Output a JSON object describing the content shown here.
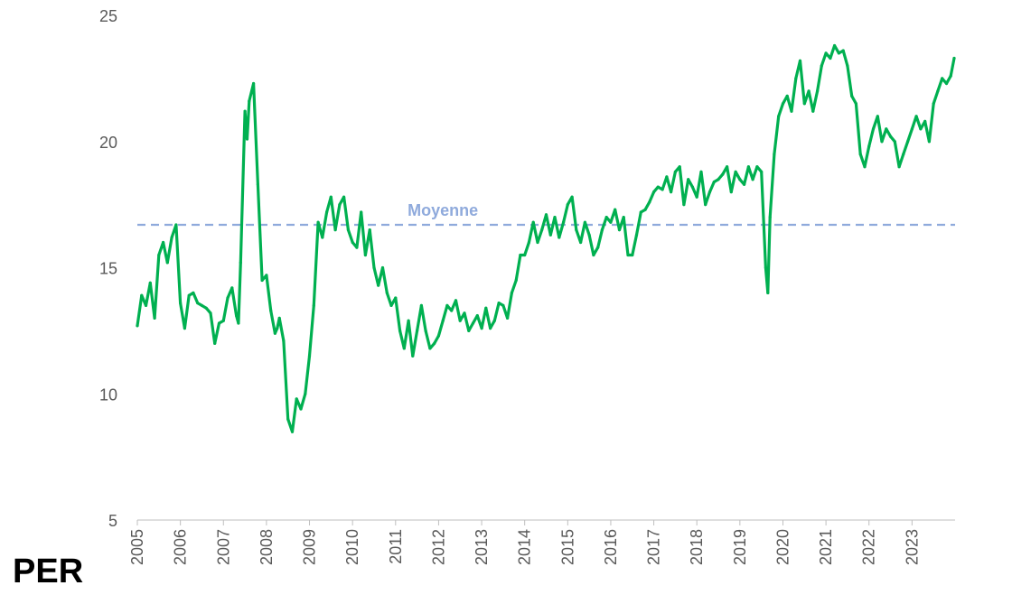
{
  "page_label": "PER",
  "chart_data": {
    "type": "line",
    "title": "",
    "xlabel": "",
    "ylabel": "",
    "ylim": [
      5,
      25
    ],
    "xlim": [
      "2005-01-01",
      "2023-12-31"
    ],
    "y_ticks": [
      5,
      10,
      15,
      20,
      25
    ],
    "x_ticks": [
      "2005",
      "2006",
      "2007",
      "2008",
      "2009",
      "2010",
      "2011",
      "2012",
      "2013",
      "2014",
      "2015",
      "2016",
      "2017",
      "2018",
      "2019",
      "2020",
      "2021",
      "2022",
      "2023"
    ],
    "grid": false,
    "line_color": "#00b050",
    "mean_line": {
      "label": "Moyenne",
      "value": 16.7,
      "color": "#8faadc",
      "style": "dashed"
    },
    "series": [
      {
        "x": [
          2005.0,
          2005.1,
          2005.2,
          2005.3,
          2005.4,
          2005.5,
          2005.6,
          2005.7,
          2005.8,
          2005.9,
          2006.0,
          2006.1,
          2006.2,
          2006.3,
          2006.4,
          2006.5,
          2006.6,
          2006.7,
          2006.8,
          2006.9,
          2007.0,
          2007.1,
          2007.2,
          2007.3,
          2007.35,
          2007.4,
          2007.5,
          2007.55,
          2007.6,
          2007.7,
          2007.8,
          2007.9,
          2008.0,
          2008.1,
          2008.2,
          2008.25,
          2008.3,
          2008.4,
          2008.5,
          2008.6,
          2008.7,
          2008.8,
          2008.9,
          2009.0,
          2009.1,
          2009.2,
          2009.3,
          2009.4,
          2009.5,
          2009.6,
          2009.7,
          2009.8,
          2009.9,
          2010.0,
          2010.1,
          2010.2,
          2010.3,
          2010.4,
          2010.5,
          2010.6,
          2010.7,
          2010.8,
          2010.9,
          2011.0,
          2011.1,
          2011.2,
          2011.3,
          2011.4,
          2011.5,
          2011.6,
          2011.7,
          2011.8,
          2011.9,
          2012.0,
          2012.1,
          2012.2,
          2012.3,
          2012.4,
          2012.5,
          2012.6,
          2012.7,
          2012.8,
          2012.9,
          2013.0,
          2013.1,
          2013.2,
          2013.3,
          2013.4,
          2013.5,
          2013.6,
          2013.7,
          2013.8,
          2013.9,
          2014.0,
          2014.1,
          2014.2,
          2014.3,
          2014.4,
          2014.5,
          2014.6,
          2014.7,
          2014.8,
          2014.9,
          2015.0,
          2015.1,
          2015.2,
          2015.3,
          2015.4,
          2015.5,
          2015.6,
          2015.7,
          2015.8,
          2015.9,
          2016.0,
          2016.1,
          2016.2,
          2016.3,
          2016.4,
          2016.5,
          2016.6,
          2016.7,
          2016.8,
          2016.9,
          2017.0,
          2017.1,
          2017.2,
          2017.3,
          2017.4,
          2017.5,
          2017.6,
          2017.7,
          2017.8,
          2017.9,
          2018.0,
          2018.1,
          2018.2,
          2018.3,
          2018.4,
          2018.5,
          2018.6,
          2018.7,
          2018.8,
          2018.9,
          2019.0,
          2019.1,
          2019.2,
          2019.3,
          2019.4,
          2019.5,
          2019.6,
          2019.65,
          2019.7,
          2019.8,
          2019.9,
          2020.0,
          2020.1,
          2020.2,
          2020.3,
          2020.4,
          2020.5,
          2020.6,
          2020.7,
          2020.8,
          2020.9,
          2021.0,
          2021.1,
          2021.2,
          2021.3,
          2021.4,
          2021.5,
          2021.6,
          2021.7,
          2021.8,
          2021.9,
          2022.0,
          2022.1,
          2022.2,
          2022.3,
          2022.4,
          2022.5,
          2022.6,
          2022.7,
          2022.8,
          2022.9,
          2023.0,
          2023.1,
          2023.2,
          2023.3,
          2023.4,
          2023.5,
          2023.6,
          2023.7,
          2023.8,
          2023.9,
          2023.98
        ],
        "values": [
          12.7,
          13.9,
          13.5,
          14.4,
          13.0,
          15.5,
          16.0,
          15.2,
          16.2,
          16.7,
          13.6,
          12.6,
          13.9,
          14.0,
          13.6,
          13.5,
          13.4,
          13.2,
          12.0,
          12.8,
          12.9,
          13.8,
          14.2,
          13.1,
          12.8,
          15.2,
          21.2,
          20.1,
          21.6,
          22.3,
          18.3,
          14.5,
          14.7,
          13.3,
          12.4,
          12.6,
          13.0,
          12.1,
          9.0,
          8.5,
          9.8,
          9.4,
          10.0,
          11.5,
          13.5,
          16.8,
          16.2,
          17.2,
          17.8,
          16.5,
          17.5,
          17.8,
          16.5,
          16.0,
          15.8,
          17.2,
          15.5,
          16.5,
          15.0,
          14.3,
          15.0,
          14.0,
          13.5,
          13.8,
          12.5,
          11.8,
          12.9,
          11.5,
          12.5,
          13.5,
          12.5,
          11.8,
          12.0,
          12.3,
          12.9,
          13.5,
          13.3,
          13.7,
          12.9,
          13.2,
          12.5,
          12.8,
          13.1,
          12.6,
          13.4,
          12.6,
          12.9,
          13.6,
          13.5,
          13.0,
          14.0,
          14.5,
          15.5,
          15.5,
          16.0,
          16.8,
          16.0,
          16.5,
          17.1,
          16.3,
          17.0,
          16.2,
          16.8,
          17.5,
          17.8,
          16.5,
          16.0,
          16.8,
          16.3,
          15.5,
          15.8,
          16.5,
          17.0,
          16.8,
          17.3,
          16.5,
          17.0,
          15.5,
          15.5,
          16.3,
          17.2,
          17.3,
          17.6,
          18.0,
          18.2,
          18.1,
          18.6,
          18.0,
          18.8,
          19.0,
          17.5,
          18.5,
          18.2,
          17.8,
          18.8,
          17.5,
          18.0,
          18.4,
          18.5,
          18.7,
          19.0,
          18.0,
          18.8,
          18.5,
          18.3,
          19.0,
          18.5,
          19.0,
          18.8,
          15.0,
          14.0,
          17.0,
          19.5,
          21.0,
          21.5,
          21.8,
          21.2,
          22.5,
          23.2,
          21.5,
          22.0,
          21.2,
          22.0,
          23.0,
          23.5,
          23.3,
          23.8,
          23.5,
          23.6,
          23.0,
          21.8,
          21.5,
          19.5,
          19.0,
          19.8,
          20.5,
          21.0,
          20.0,
          20.5,
          20.2,
          20.0,
          19.0,
          19.5,
          20.0,
          20.5,
          21.0,
          20.5,
          20.8,
          20.0,
          21.5,
          22.0,
          22.5,
          22.3,
          22.6,
          23.3
        ]
      }
    ]
  }
}
